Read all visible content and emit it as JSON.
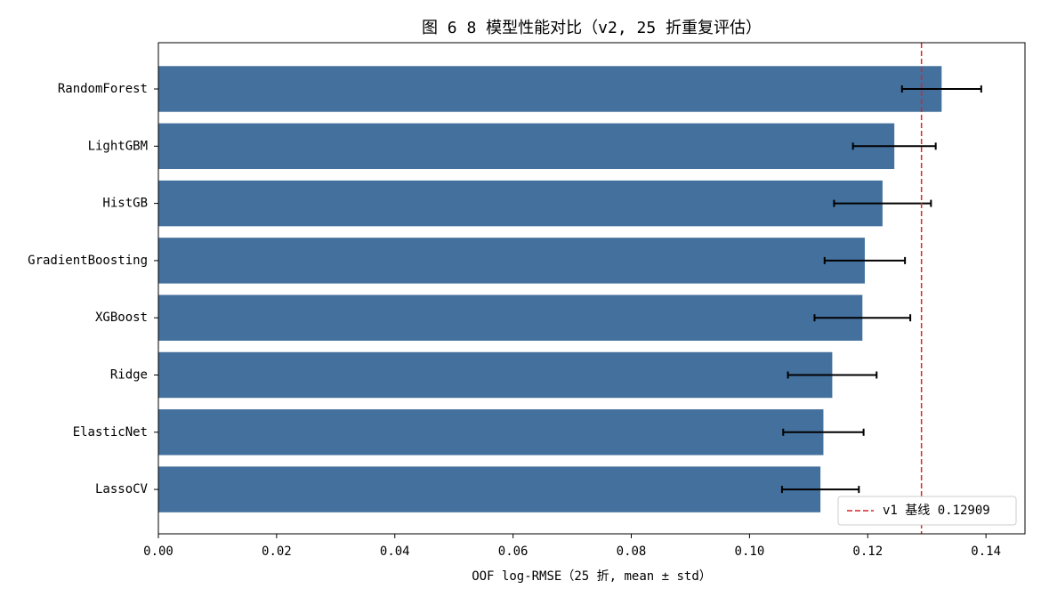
{
  "chart_data": {
    "type": "barh",
    "title": "图 6  8 模型性能对比（v2, 25 折重复评估）",
    "x_label": "OOF log-RMSE（25 折, mean ± std）",
    "categories": [
      "RandomForest",
      "LightGBM",
      "HistGB",
      "GradientBoosting",
      "XGBoost",
      "Ridge",
      "ElasticNet",
      "LassoCV"
    ],
    "values": [
      0.1325,
      0.1245,
      0.1225,
      0.1195,
      0.1191,
      0.114,
      0.1125,
      0.112
    ],
    "errors": [
      0.0067,
      0.007,
      0.0082,
      0.0068,
      0.0081,
      0.0075,
      0.0068,
      0.0065
    ],
    "color": "#44709d",
    "error_color": "#000000",
    "baseline": {
      "value": 0.12909,
      "label": "v1 基线 0.12909",
      "color": "#d62728"
    },
    "xlim": [
      0,
      0.1466
    ],
    "xticks": [
      {
        "value": 0,
        "label": "0.00"
      },
      {
        "value": 0.02,
        "label": "0.02"
      },
      {
        "value": 0.04,
        "label": "0.04"
      },
      {
        "value": 0.06,
        "label": "0.06"
      },
      {
        "value": 0.08,
        "label": "0.08"
      },
      {
        "value": 0.1,
        "label": "0.10"
      },
      {
        "value": 0.12,
        "label": "0.12"
      },
      {
        "value": 0.14,
        "label": "0.14"
      }
    ],
    "legend": "lower right",
    "grid": false
  }
}
